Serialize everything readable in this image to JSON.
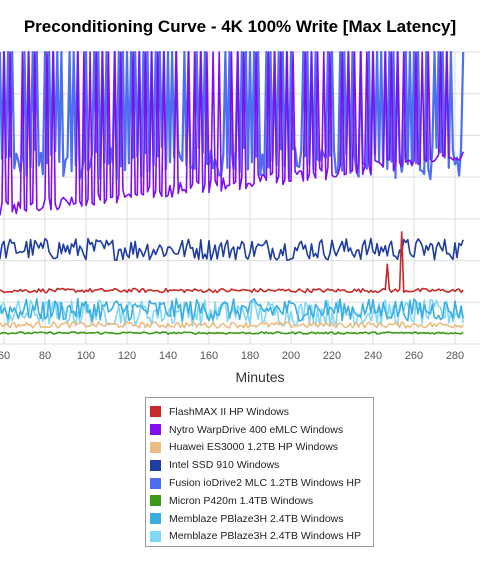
{
  "chart_data": {
    "type": "line",
    "title": "Preconditioning Curve - 4K 100% Write [Max Latency]",
    "xlabel": "Minutes",
    "ylabel": "",
    "xlim": [
      60,
      282
    ],
    "x_ticks": [
      60,
      80,
      100,
      120,
      140,
      160,
      180,
      200,
      220,
      240,
      260,
      280
    ],
    "grid": true,
    "legend_position": "bottom",
    "x_step": 1,
    "series": [
      {
        "name": "FlashMAX II HP Windows",
        "color": "#c62a2a",
        "baseline": 44,
        "noise": 2,
        "spikes": [
          [
            247,
            70
          ],
          [
            254,
            102
          ]
        ]
      },
      {
        "name": "Nytro WarpDrive 400 eMLC Windows",
        "color": "#7f0ff0",
        "baseline": 125,
        "trend_end": 175,
        "noise": 7,
        "spike_interval": 3,
        "spike_value": 280
      },
      {
        "name": "Huawei ES3000 1.2TB HP Windows",
        "color": "#ebbd82",
        "baseline": 10,
        "noise": 3
      },
      {
        "name": "Intel SSD 910 Windows",
        "color": "#1f3ca0",
        "baseline": 85,
        "noise": 11
      },
      {
        "name": "Fusion ioDrive2 MLC 1.2TB Windows HP",
        "color": "#4d6ff0",
        "baseline": 170,
        "noise": 16,
        "spike_interval": 2,
        "spike_value": 600
      },
      {
        "name": "Micron P420m 1.4TB Windows",
        "color": "#3a9a18",
        "baseline": 2,
        "noise": 1
      },
      {
        "name": "Memblaze PBlaze3H 2.4TB Windows",
        "color": "#3aaee0",
        "baseline": 25,
        "noise": 11
      },
      {
        "name": "Memblaze PBlaze3H 2.4TB Windows HP",
        "color": "#80d8f8",
        "baseline": 22,
        "noise": 13
      }
    ]
  }
}
